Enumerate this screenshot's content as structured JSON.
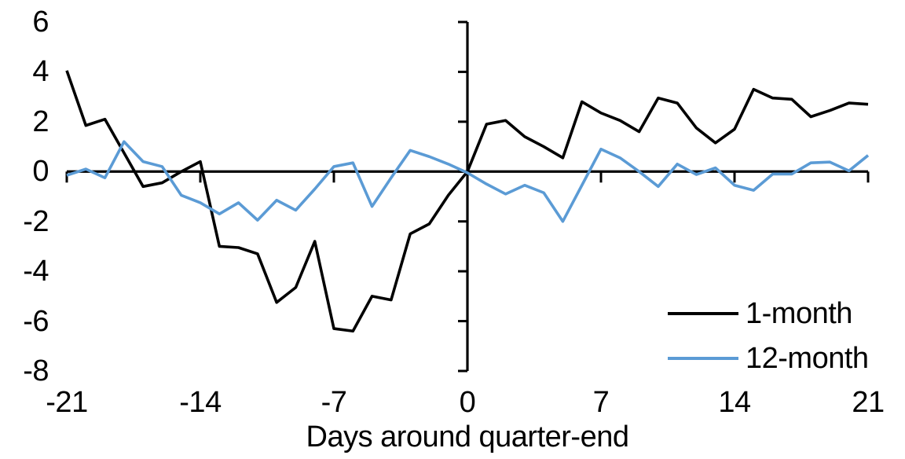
{
  "chart_data": {
    "type": "line",
    "title": "",
    "xlabel": "Days around quarter-end",
    "ylabel": "",
    "xlim": [
      -21,
      21
    ],
    "ylim": [
      -8,
      6
    ],
    "xticks": [
      -21,
      -14,
      -7,
      0,
      7,
      14,
      21
    ],
    "yticks": [
      6,
      4,
      2,
      0,
      -2,
      -4,
      -6,
      -8
    ],
    "grid": false,
    "legend_position": "inside-lower-right",
    "axis_color": "#000000",
    "x": [
      -21,
      -20,
      -19,
      -18,
      -17,
      -16,
      -15,
      -14,
      -13,
      -12,
      -11,
      -10,
      -9,
      -8,
      -7,
      -6,
      -5,
      -4,
      -3,
      -2,
      -1,
      0,
      1,
      2,
      3,
      4,
      5,
      6,
      7,
      8,
      9,
      10,
      11,
      12,
      13,
      14,
      15,
      16,
      17,
      18,
      19,
      20,
      21
    ],
    "series": [
      {
        "name": "1-month",
        "color": "#000000",
        "values": [
          4.05,
          1.85,
          2.1,
          0.75,
          -0.6,
          -0.45,
          0.0,
          0.4,
          -3.0,
          -3.05,
          -3.3,
          -5.25,
          -4.65,
          -2.8,
          -6.3,
          -6.4,
          -5.0,
          -5.15,
          -2.5,
          -2.1,
          -0.95,
          0.0,
          1.9,
          2.05,
          1.4,
          1.0,
          0.55,
          2.8,
          2.35,
          2.05,
          1.6,
          2.95,
          2.75,
          1.75,
          1.15,
          1.7,
          3.3,
          2.95,
          2.9,
          2.2,
          2.45,
          2.75,
          2.7
        ]
      },
      {
        "name": "12-month",
        "color": "#5B9BD5",
        "values": [
          -0.15,
          0.1,
          -0.25,
          1.2,
          0.4,
          0.2,
          -0.95,
          -1.25,
          -1.7,
          -1.25,
          -1.95,
          -1.15,
          -1.55,
          -0.7,
          0.2,
          0.35,
          -1.4,
          -0.25,
          0.85,
          0.6,
          0.3,
          -0.05,
          -0.5,
          -0.9,
          -0.55,
          -0.85,
          -2.0,
          -0.55,
          0.9,
          0.55,
          0.0,
          -0.6,
          0.3,
          -0.12,
          0.15,
          -0.55,
          -0.75,
          -0.1,
          -0.1,
          0.35,
          0.38,
          0.03,
          0.65
        ]
      }
    ]
  }
}
